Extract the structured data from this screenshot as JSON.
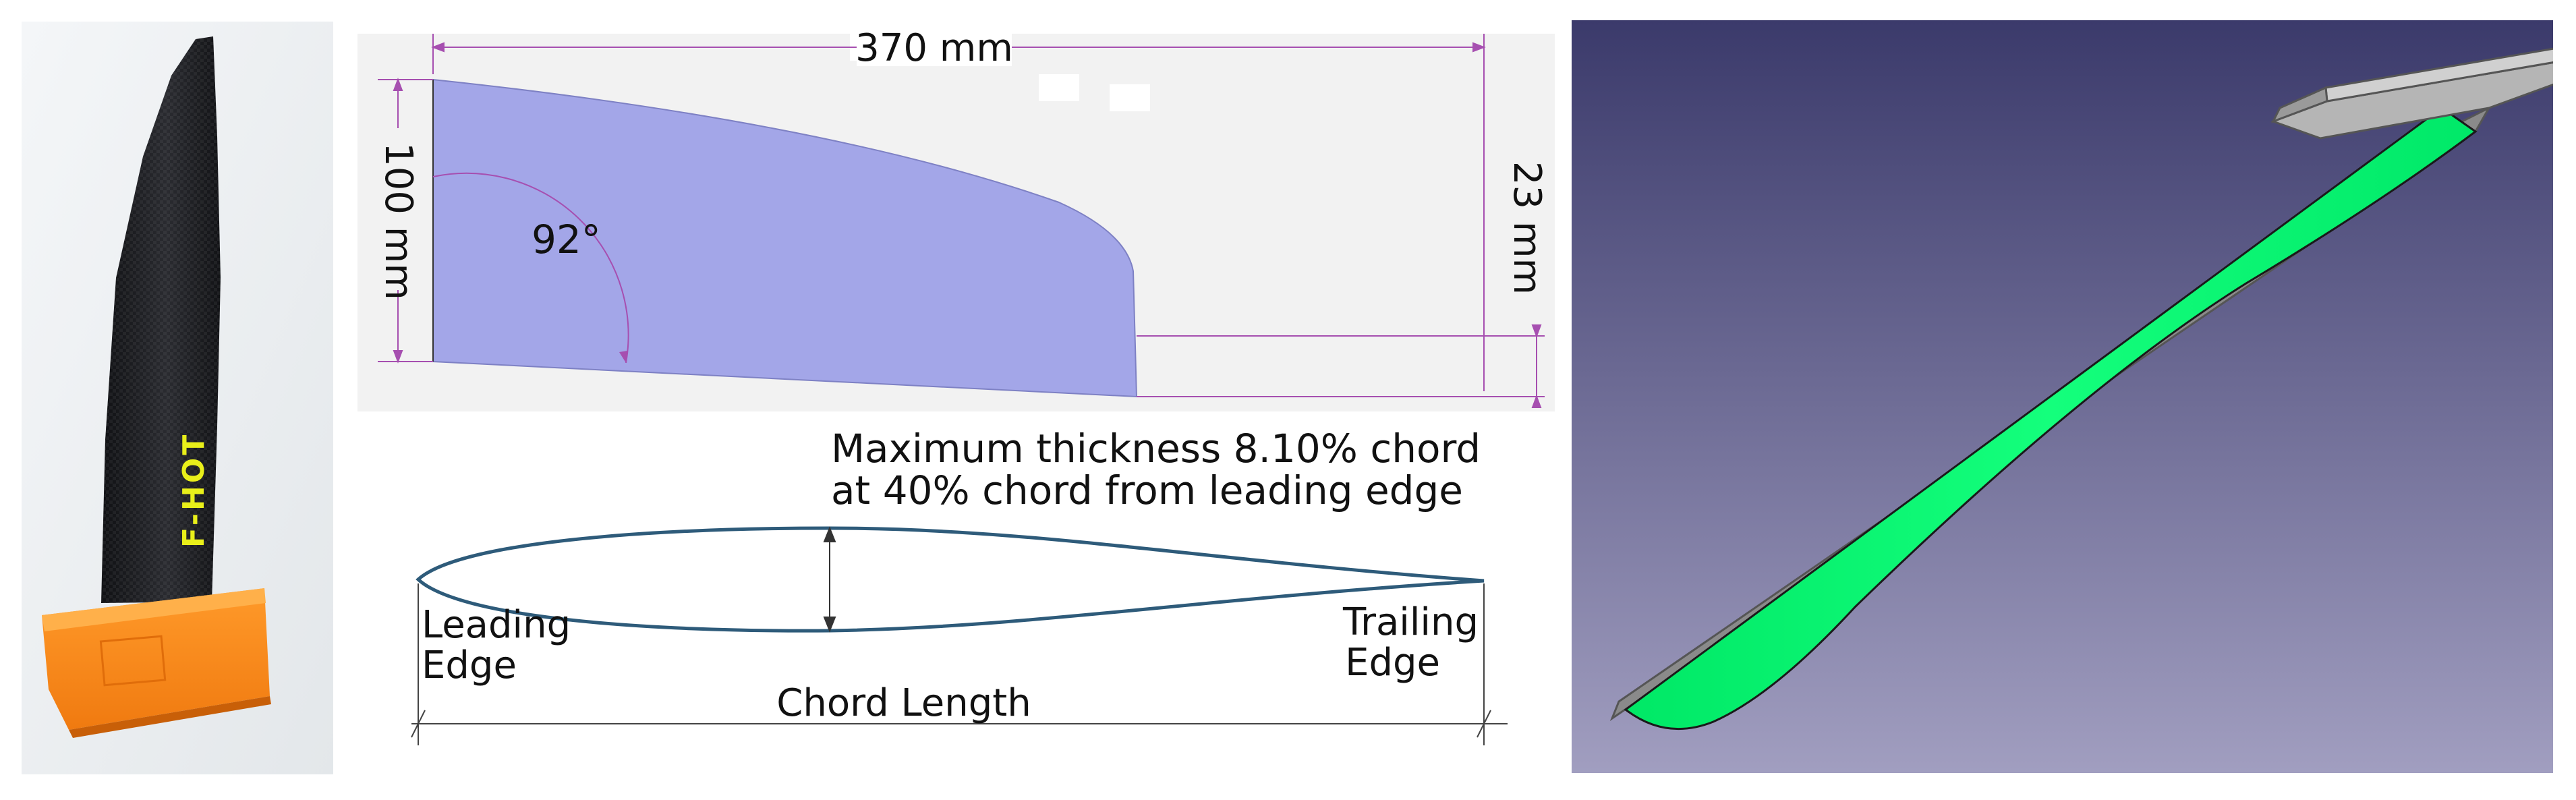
{
  "fin_photo": {
    "brand_text": "F-HOT",
    "colors": {
      "blade": "#1b1c1f",
      "base": "#ff8a1c",
      "brand": "#e9ef1a"
    }
  },
  "planform": {
    "span_label": "370 mm",
    "root_chord_label": "100 mm",
    "tip_chord_label": "23 mm",
    "angle_label": "92°",
    "colors": {
      "fill": "#a3a6e8",
      "dim": "#a64fb0",
      "background": "#f2f2f2"
    }
  },
  "airfoil": {
    "note_line1": "Maximum thickness 8.10% chord",
    "note_line2": "at 40% chord from leading edge",
    "leading_edge_line1": "Leading",
    "leading_edge_line2": "Edge",
    "trailing_edge_line1": "Trailing",
    "trailing_edge_line2": "Edge",
    "chord_label": "Chord Length",
    "colors": {
      "outline": "#2e5b7a",
      "dim": "#444444"
    }
  },
  "cad_view": {
    "colors": {
      "bg_top": "#3b3a6b",
      "bg_bottom": "#a19ec0",
      "surface": "#00f56f",
      "edge": "#8a8a8a"
    }
  }
}
